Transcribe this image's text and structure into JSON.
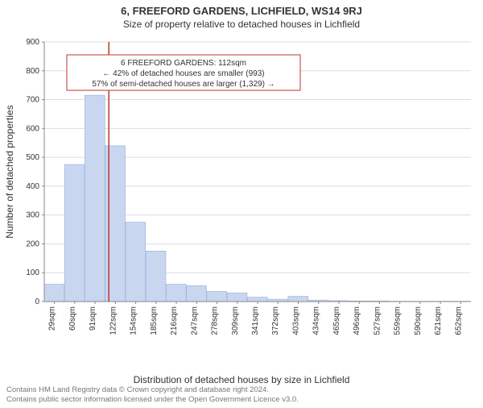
{
  "title": "6, FREEFORD GARDENS, LICHFIELD, WS14 9RJ",
  "subtitle": "Size of property relative to detached houses in Lichfield",
  "ylabel": "Number of detached properties",
  "xlabel": "Distribution of detached houses by size in Lichfield",
  "footer1": "Contains HM Land Registry data © Crown copyright and database right 2024.",
  "footer2": "Contains public sector information licensed under the Open Government Licence v3.0.",
  "chart": {
    "type": "histogram",
    "ylim": [
      0,
      900
    ],
    "ytick_step": 100,
    "bar_fill": "#c9d6f0",
    "bar_stroke": "#9fb4dd",
    "grid_color": "#dddddd",
    "axis_color": "#888888",
    "background_color": "#ffffff",
    "marker_line_color": "#c2352c",
    "marker_x": 112,
    "x_categories": [
      "29sqm",
      "60sqm",
      "91sqm",
      "122sqm",
      "154sqm",
      "185sqm",
      "216sqm",
      "247sqm",
      "278sqm",
      "309sqm",
      "341sqm",
      "372sqm",
      "403sqm",
      "434sqm",
      "465sqm",
      "496sqm",
      "527sqm",
      "559sqm",
      "590sqm",
      "621sqm",
      "652sqm"
    ],
    "values": [
      60,
      475,
      715,
      540,
      275,
      175,
      60,
      55,
      35,
      30,
      15,
      8,
      18,
      5,
      3,
      2,
      2,
      1,
      1,
      1,
      1
    ]
  },
  "info": {
    "line1": "6 FREEFORD GARDENS: 112sqm",
    "line2": "← 42% of detached houses are smaller (993)",
    "line3": "57% of semi-detached houses are larger (1,329) →"
  }
}
